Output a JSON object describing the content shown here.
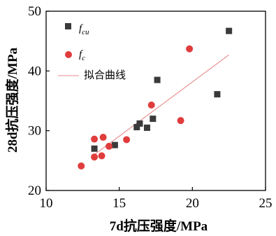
{
  "chart_data": {
    "type": "scatter",
    "xlabel": "7d抗压强度/MPa",
    "ylabel": "28d抗压强度/MPa",
    "xlim": [
      10,
      25
    ],
    "ylim": [
      20,
      50
    ],
    "xticks": [
      10,
      15,
      20,
      25
    ],
    "yticks": [
      20,
      30,
      40,
      50
    ],
    "grid": false,
    "legend_position": "top-left",
    "series": [
      {
        "name": "fcu",
        "legend_main": "f",
        "legend_sub": "cu",
        "marker": "square",
        "color": "#3a3a3a",
        "points": [
          [
            13.3,
            27.0
          ],
          [
            14.7,
            27.6
          ],
          [
            16.2,
            30.6
          ],
          [
            16.4,
            31.2
          ],
          [
            16.9,
            30.5
          ],
          [
            17.3,
            32.0
          ],
          [
            17.6,
            38.5
          ],
          [
            21.7,
            36.1
          ],
          [
            22.5,
            46.7
          ]
        ]
      },
      {
        "name": "fc",
        "legend_main": "f",
        "legend_sub": "c",
        "marker": "circle",
        "color": "#e03c3c",
        "points": [
          [
            12.4,
            24.1
          ],
          [
            13.3,
            25.6
          ],
          [
            13.3,
            28.6
          ],
          [
            13.8,
            25.8
          ],
          [
            13.9,
            28.9
          ],
          [
            14.3,
            27.4
          ],
          [
            15.5,
            28.5
          ],
          [
            17.2,
            34.3
          ],
          [
            19.2,
            31.7
          ],
          [
            19.8,
            43.7
          ]
        ]
      },
      {
        "name": "拟合曲线",
        "legend_label": "拟合曲线",
        "type": "line",
        "color": "#e88a8a",
        "points": [
          [
            13.3,
            26.0
          ],
          [
            22.5,
            42.7
          ]
        ]
      }
    ]
  }
}
